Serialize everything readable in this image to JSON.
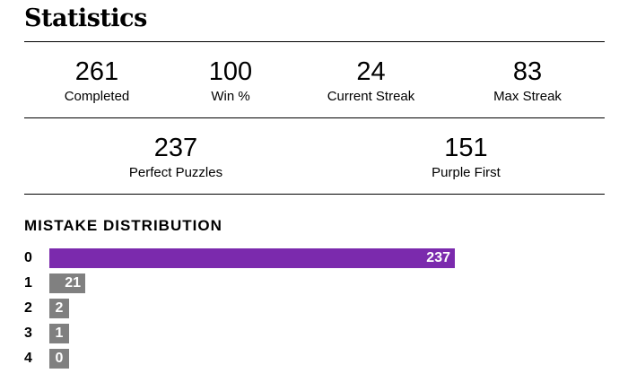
{
  "header": {
    "title": "Statistics"
  },
  "stats": {
    "completed": {
      "value": "261",
      "label": "Completed"
    },
    "win_pct": {
      "value": "100",
      "label": "Win %"
    },
    "current_streak": {
      "value": "24",
      "label": "Current Streak"
    },
    "max_streak": {
      "value": "83",
      "label": "Max Streak"
    },
    "perfect_puzzles": {
      "value": "237",
      "label": "Perfect Puzzles"
    },
    "purple_first": {
      "value": "151",
      "label": "Purple First"
    }
  },
  "distribution": {
    "title": "MISTAKE DISTRIBUTION",
    "highlight_color": "#7b2aad",
    "default_color": "#808080",
    "rows": [
      {
        "label": "0",
        "value": 237,
        "highlight": true
      },
      {
        "label": "1",
        "value": 21,
        "highlight": false
      },
      {
        "label": "2",
        "value": 2,
        "highlight": false
      },
      {
        "label": "3",
        "value": 1,
        "highlight": false
      },
      {
        "label": "4",
        "value": 0,
        "highlight": false
      }
    ]
  }
}
